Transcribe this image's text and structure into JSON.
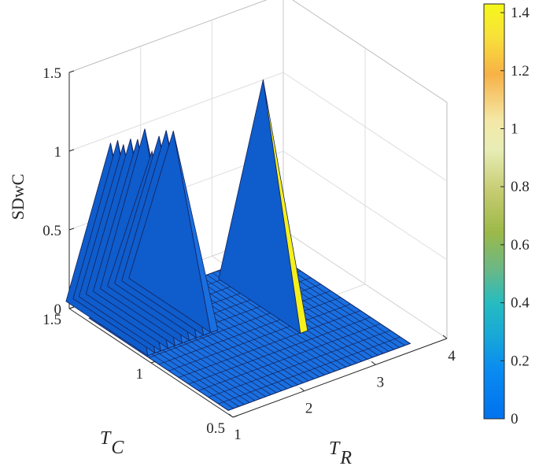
{
  "chart_data": {
    "type": "surface",
    "zlabel": "SDwC",
    "xlabel_main": "T",
    "xlabel_sub": "R",
    "ylabel_main": "T",
    "ylabel_sub": "C",
    "xlim": [
      1,
      4
    ],
    "ylim": [
      0.5,
      1.5
    ],
    "zlim": [
      0,
      1.5
    ],
    "x_ticks": [
      "1",
      "2",
      "3",
      "4"
    ],
    "y_ticks": [
      "0.5",
      "1",
      "1.5"
    ],
    "z_ticks": [
      "0",
      "0.5",
      "1",
      "1.5"
    ],
    "grid": true,
    "colormap": "parula",
    "colorbar": {
      "range": [
        0,
        1.43
      ],
      "ticks": [
        "0",
        "0.2",
        "0.4",
        "0.6",
        "0.8",
        "1",
        "1.2",
        "1.4"
      ]
    },
    "surface": {
      "base_value": 0,
      "peaks": [
        {
          "x": 1.12,
          "y": 1.3,
          "z": 1.17
        },
        {
          "x": 1.22,
          "y": 1.3,
          "z": 1.17
        },
        {
          "x": 1.3,
          "y": 1.3,
          "z": 1.13
        },
        {
          "x": 1.4,
          "y": 1.3,
          "z": 1.15
        },
        {
          "x": 1.5,
          "y": 1.3,
          "z": 1.13
        },
        {
          "x": 1.6,
          "y": 1.3,
          "z": 1.18
        },
        {
          "x": 1.7,
          "y": 1.3,
          "z": 1.02
        },
        {
          "x": 1.8,
          "y": 1.3,
          "z": 1.1
        },
        {
          "x": 1.9,
          "y": 1.3,
          "z": 1.12
        },
        {
          "x": 2.0,
          "y": 1.3,
          "z": 1.1
        },
        {
          "x": 2.8,
          "y": 1.1,
          "z": 1.43
        }
      ]
    }
  }
}
